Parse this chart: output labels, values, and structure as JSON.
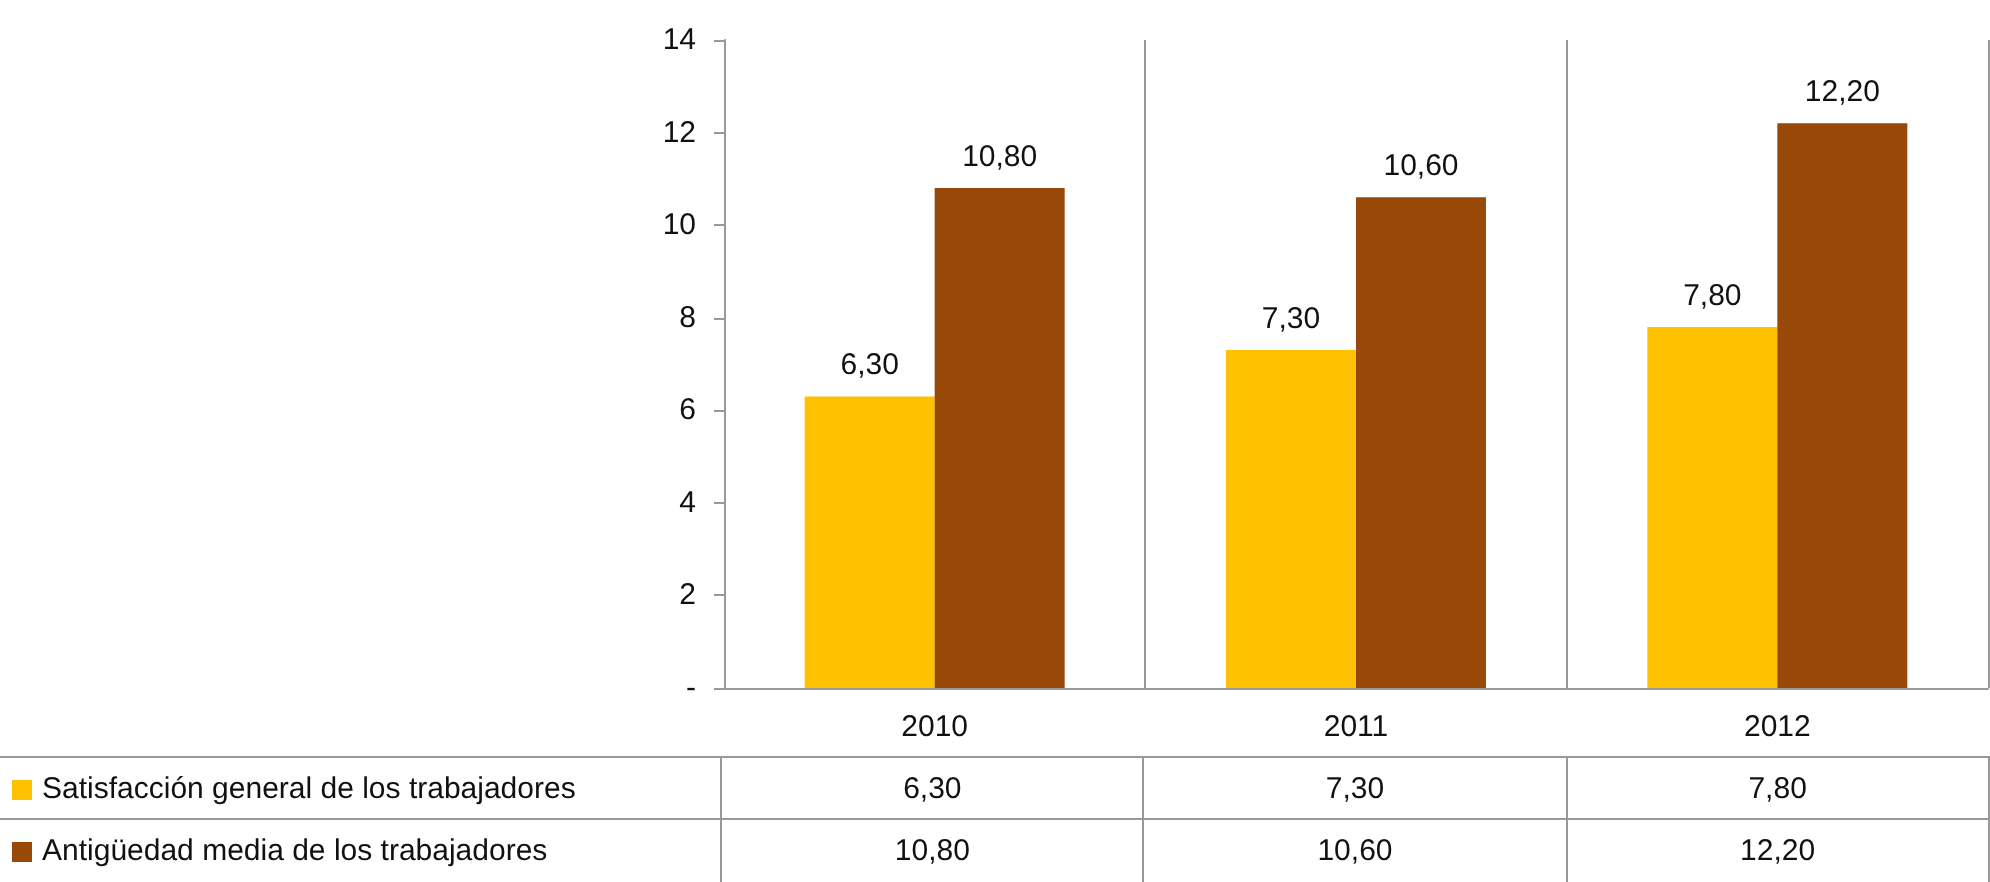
{
  "chart_data": {
    "type": "bar",
    "categories": [
      "2010",
      "2011",
      "2012"
    ],
    "series": [
      {
        "name": "Satisfacción general de los trabajadores",
        "color": "#ffc000",
        "values": [
          6.3,
          7.3,
          7.8
        ],
        "value_labels": [
          "6,30",
          "7,30",
          "7,80"
        ]
      },
      {
        "name": "Antigüedad media de los trabajadores",
        "color": "#984807",
        "values": [
          10.8,
          10.6,
          12.2
        ],
        "value_labels": [
          "10,80",
          "10,60",
          "12,20"
        ]
      }
    ],
    "ylim": [
      0,
      14
    ],
    "yticks": [
      {
        "value": 0,
        "label": "-"
      },
      2,
      4,
      6,
      8,
      10,
      12,
      14
    ],
    "grid": "x",
    "legend": "bottom"
  }
}
